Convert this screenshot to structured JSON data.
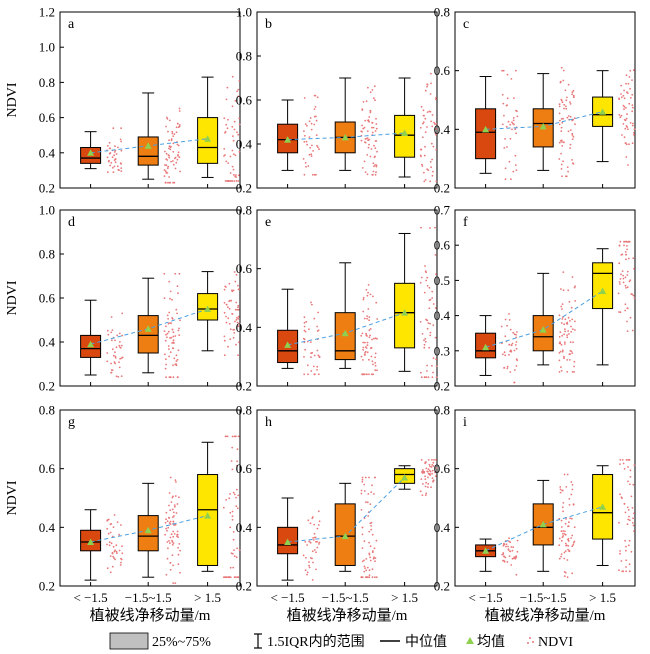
{
  "figure": {
    "ylabel": "NDVI",
    "xlabel": "植被线净移动量/m",
    "categories": [
      "< −1.5",
      "−1.5~1.5",
      "> 1.5"
    ]
  },
  "colors": {
    "box_low": "#d9480f",
    "box_mid": "#ee7d12",
    "box_high": "#ffe600",
    "mean_marker": "#8fd14f",
    "mean_line": "#4a9fe0",
    "points": "#e8787a",
    "legend_box": "#c0c0c0"
  },
  "legend": {
    "box_label": "25%~75%",
    "whisker_label": "1.5IQR内的范围",
    "median_label": "中位值",
    "mean_label": "均值",
    "points_label": "NDVI"
  },
  "chart_data": [
    {
      "type": "box",
      "panel": "a",
      "ylim": [
        0.2,
        1.2
      ],
      "yticks": [
        "0.2",
        "0.4",
        "0.6",
        "0.8",
        "1.0",
        "1.2"
      ],
      "boxes": [
        {
          "q1": 0.34,
          "median": 0.37,
          "q3": 0.43,
          "whisker_low": 0.31,
          "whisker_high": 0.52,
          "mean": 0.4
        },
        {
          "q1": 0.33,
          "median": 0.38,
          "q3": 0.49,
          "whisker_low": 0.25,
          "whisker_high": 0.74,
          "mean": 0.44
        },
        {
          "q1": 0.34,
          "median": 0.43,
          "q3": 0.6,
          "whisker_low": 0.26,
          "whisker_high": 0.83,
          "mean": 0.48
        }
      ]
    },
    {
      "type": "box",
      "panel": "b",
      "ylim": [
        0.2,
        1.0
      ],
      "yticks": [
        "0.2",
        "0.4",
        "0.6",
        "0.8",
        "1.0"
      ],
      "boxes": [
        {
          "q1": 0.36,
          "median": 0.42,
          "q3": 0.49,
          "whisker_low": 0.28,
          "whisker_high": 0.6,
          "mean": 0.42
        },
        {
          "q1": 0.36,
          "median": 0.43,
          "q3": 0.5,
          "whisker_low": 0.28,
          "whisker_high": 0.7,
          "mean": 0.43
        },
        {
          "q1": 0.34,
          "median": 0.44,
          "q3": 0.53,
          "whisker_low": 0.25,
          "whisker_high": 0.7,
          "mean": 0.45
        }
      ]
    },
    {
      "type": "box",
      "panel": "c",
      "ylim": [
        0.2,
        0.8
      ],
      "yticks": [
        "0.2",
        "0.4",
        "0.6",
        "0.8"
      ],
      "boxes": [
        {
          "q1": 0.3,
          "median": 0.39,
          "q3": 0.47,
          "whisker_low": 0.25,
          "whisker_high": 0.58,
          "mean": 0.4
        },
        {
          "q1": 0.34,
          "median": 0.42,
          "q3": 0.47,
          "whisker_low": 0.26,
          "whisker_high": 0.59,
          "mean": 0.41
        },
        {
          "q1": 0.41,
          "median": 0.45,
          "q3": 0.51,
          "whisker_low": 0.29,
          "whisker_high": 0.6,
          "mean": 0.46
        }
      ]
    },
    {
      "type": "box",
      "panel": "d",
      "ylim": [
        0.2,
        1.0
      ],
      "yticks": [
        "0.2",
        "0.4",
        "0.6",
        "0.8",
        "1.0"
      ],
      "boxes": [
        {
          "q1": 0.33,
          "median": 0.37,
          "q3": 0.43,
          "whisker_low": 0.25,
          "whisker_high": 0.59,
          "mean": 0.39
        },
        {
          "q1": 0.35,
          "median": 0.43,
          "q3": 0.52,
          "whisker_low": 0.26,
          "whisker_high": 0.69,
          "mean": 0.46
        },
        {
          "q1": 0.5,
          "median": 0.55,
          "q3": 0.62,
          "whisker_low": 0.36,
          "whisker_high": 0.72,
          "mean": 0.55
        }
      ]
    },
    {
      "type": "box",
      "panel": "e",
      "ylim": [
        0.2,
        0.8
      ],
      "yticks": [
        "0.2",
        "0.4",
        "0.6",
        "0.8"
      ],
      "boxes": [
        {
          "q1": 0.28,
          "median": 0.32,
          "q3": 0.39,
          "whisker_low": 0.26,
          "whisker_high": 0.53,
          "mean": 0.34
        },
        {
          "q1": 0.29,
          "median": 0.32,
          "q3": 0.45,
          "whisker_low": 0.26,
          "whisker_high": 0.62,
          "mean": 0.38
        },
        {
          "q1": 0.33,
          "median": 0.45,
          "q3": 0.55,
          "whisker_low": 0.25,
          "whisker_high": 0.72,
          "mean": 0.45
        }
      ]
    },
    {
      "type": "box",
      "panel": "f",
      "ylim": [
        0.2,
        0.7
      ],
      "yticks": [
        "0.2",
        "0.3",
        "0.4",
        "0.5",
        "0.6",
        "0.7"
      ],
      "boxes": [
        {
          "q1": 0.28,
          "median": 0.3,
          "q3": 0.35,
          "whisker_low": 0.23,
          "whisker_high": 0.4,
          "mean": 0.31
        },
        {
          "q1": 0.3,
          "median": 0.34,
          "q3": 0.4,
          "whisker_low": 0.26,
          "whisker_high": 0.52,
          "mean": 0.36
        },
        {
          "q1": 0.42,
          "median": 0.52,
          "q3": 0.55,
          "whisker_low": 0.26,
          "whisker_high": 0.59,
          "mean": 0.47
        }
      ]
    },
    {
      "type": "box",
      "panel": "g",
      "ylim": [
        0.2,
        0.8
      ],
      "yticks": [
        "0.2",
        "0.4",
        "0.6",
        "0.8"
      ],
      "boxes": [
        {
          "q1": 0.32,
          "median": 0.35,
          "q3": 0.39,
          "whisker_low": 0.22,
          "whisker_high": 0.46,
          "mean": 0.35
        },
        {
          "q1": 0.32,
          "median": 0.37,
          "q3": 0.44,
          "whisker_low": 0.23,
          "whisker_high": 0.55,
          "mean": 0.39
        },
        {
          "q1": 0.27,
          "median": 0.46,
          "q3": 0.58,
          "whisker_low": 0.25,
          "whisker_high": 0.69,
          "mean": 0.44
        }
      ]
    },
    {
      "type": "box",
      "panel": "h",
      "ylim": [
        0.2,
        0.8
      ],
      "yticks": [
        "0.2",
        "0.4",
        "0.6",
        "0.8"
      ],
      "boxes": [
        {
          "q1": 0.31,
          "median": 0.34,
          "q3": 0.4,
          "whisker_low": 0.22,
          "whisker_high": 0.5,
          "mean": 0.35
        },
        {
          "q1": 0.27,
          "median": 0.37,
          "q3": 0.48,
          "whisker_low": 0.25,
          "whisker_high": 0.55,
          "mean": 0.37
        },
        {
          "q1": 0.55,
          "median": 0.58,
          "q3": 0.6,
          "whisker_low": 0.53,
          "whisker_high": 0.61,
          "mean": 0.57
        }
      ]
    },
    {
      "type": "box",
      "panel": "i",
      "ylim": [
        0.2,
        0.8
      ],
      "yticks": [
        "0.2",
        "0.4",
        "0.6",
        "0.8"
      ],
      "boxes": [
        {
          "q1": 0.3,
          "median": 0.32,
          "q3": 0.34,
          "whisker_low": 0.25,
          "whisker_high": 0.36,
          "mean": 0.32
        },
        {
          "q1": 0.34,
          "median": 0.4,
          "q3": 0.48,
          "whisker_low": 0.25,
          "whisker_high": 0.56,
          "mean": 0.41
        },
        {
          "q1": 0.36,
          "median": 0.45,
          "q3": 0.58,
          "whisker_low": 0.27,
          "whisker_high": 0.61,
          "mean": 0.47
        }
      ]
    }
  ]
}
